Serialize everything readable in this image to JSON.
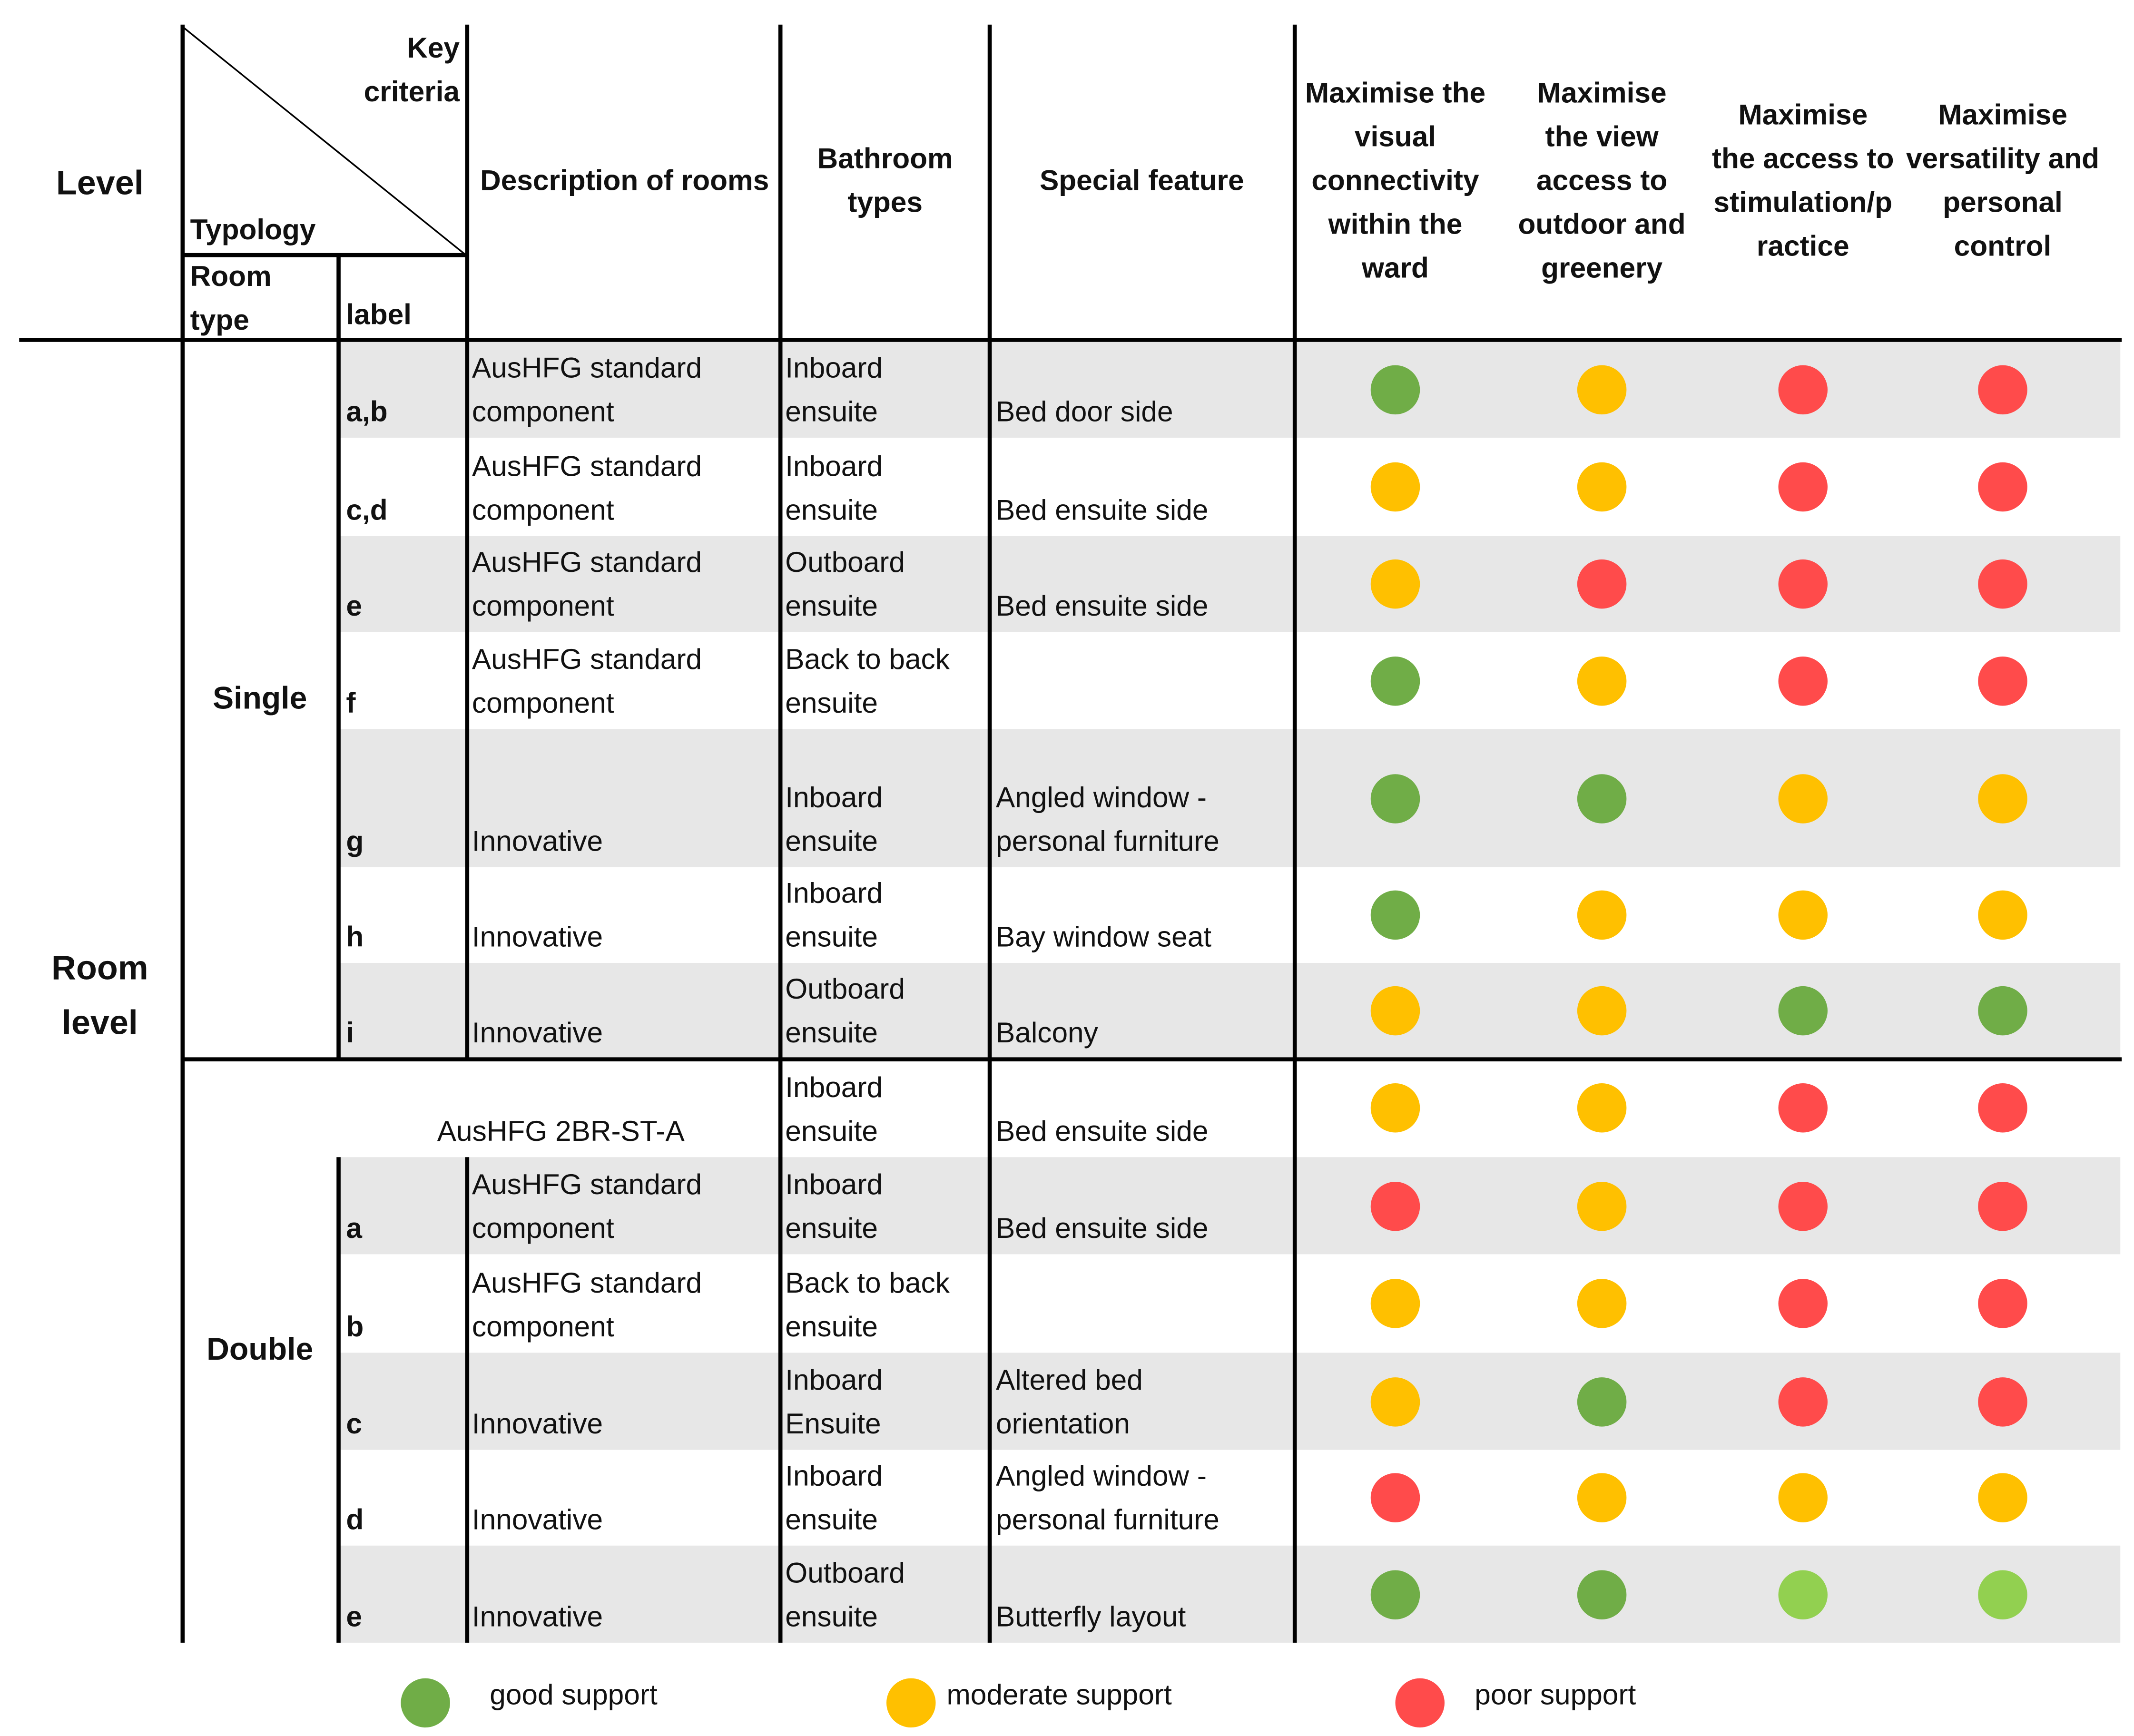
{
  "colors": {
    "good": "#70ad47",
    "good_light": "#92d050",
    "moderate": "#ffc000",
    "poor": "#ff4b4b",
    "band": "#e7e7e7"
  },
  "header": {
    "level": "Level",
    "key_criteria_line1": "Key",
    "key_criteria_line2": "criteria",
    "typology": "Typology",
    "room_type_line1": "Room",
    "room_type_line2": "type",
    "label": "label",
    "description": "Description of rooms",
    "bathroom_line1": "Bathroom",
    "bathroom_line2": "types",
    "special": "Special feature",
    "criteria": [
      {
        "lines": [
          "Maximise the",
          "visual",
          "connectivity",
          "within the",
          "ward"
        ]
      },
      {
        "lines": [
          "Maximise",
          "the view",
          "access to",
          "outdoor and",
          "greenery"
        ]
      },
      {
        "lines": [
          "Maximise",
          "the access to",
          "stimulation/p",
          "ractice"
        ]
      },
      {
        "lines": [
          "Maximise",
          "versatility and",
          "personal",
          "control"
        ]
      }
    ]
  },
  "level_label": {
    "line1": "Room",
    "line2": "level"
  },
  "groups": {
    "single": "Single",
    "double": "Double"
  },
  "rows": [
    {
      "label": "a,b",
      "desc": [
        "AusHFG standard",
        "component"
      ],
      "bath": [
        "Inboard",
        "ensuite"
      ],
      "special": [
        "Bed door side"
      ],
      "ratings": [
        "good",
        "moderate",
        "poor",
        "poor"
      ]
    },
    {
      "label": "c,d",
      "desc": [
        "AusHFG standard",
        "component"
      ],
      "bath": [
        "Inboard",
        "ensuite"
      ],
      "special": [
        "Bed ensuite side"
      ],
      "ratings": [
        "moderate",
        "moderate",
        "poor",
        "poor"
      ]
    },
    {
      "label": "e",
      "desc": [
        "AusHFG standard",
        "component"
      ],
      "bath": [
        "Outboard",
        "ensuite"
      ],
      "special": [
        "Bed ensuite side"
      ],
      "ratings": [
        "moderate",
        "poor",
        "poor",
        "poor"
      ]
    },
    {
      "label": "f",
      "desc": [
        "AusHFG standard",
        "component"
      ],
      "bath": [
        "Back to back",
        "ensuite"
      ],
      "special": [],
      "ratings": [
        "good",
        "moderate",
        "poor",
        "poor"
      ]
    },
    {
      "label": "g",
      "desc": [
        "Innovative"
      ],
      "bath": [
        "Inboard",
        "ensuite"
      ],
      "special": [
        "Angled window -",
        "personal furniture"
      ],
      "ratings": [
        "good",
        "good",
        "moderate",
        "moderate"
      ]
    },
    {
      "label": "h",
      "desc": [
        "Innovative"
      ],
      "bath": [
        "Inboard",
        "ensuite"
      ],
      "special": [
        "Bay window seat"
      ],
      "ratings": [
        "good",
        "moderate",
        "moderate",
        "moderate"
      ]
    },
    {
      "label": "i",
      "desc": [
        "Innovative"
      ],
      "bath": [
        "Outboard",
        "ensuite"
      ],
      "special": [
        "Balcony"
      ],
      "ratings": [
        "moderate",
        "moderate",
        "good",
        "good"
      ]
    },
    {
      "label": "",
      "desc": [
        "AusHFG 2BR-ST-A"
      ],
      "bath": [
        "Inboard",
        "ensuite"
      ],
      "special": [
        "Bed ensuite side"
      ],
      "ratings": [
        "moderate",
        "moderate",
        "poor",
        "poor"
      ]
    },
    {
      "label": "a",
      "desc": [
        "AusHFG standard",
        "component"
      ],
      "bath": [
        "Inboard",
        "ensuite"
      ],
      "special": [
        "Bed ensuite side"
      ],
      "ratings": [
        "poor",
        "moderate",
        "poor",
        "poor"
      ]
    },
    {
      "label": "b",
      "desc": [
        "AusHFG standard",
        "component"
      ],
      "bath": [
        "Back to back",
        "ensuite"
      ],
      "special": [],
      "ratings": [
        "moderate",
        "moderate",
        "poor",
        "poor"
      ]
    },
    {
      "label": "c",
      "desc": [
        "Innovative"
      ],
      "bath": [
        "Inboard",
        "Ensuite"
      ],
      "special": [
        "Altered bed",
        "orientation"
      ],
      "ratings": [
        "moderate",
        "good",
        "poor",
        "poor"
      ]
    },
    {
      "label": "d",
      "desc": [
        "Innovative"
      ],
      "bath": [
        "Inboard",
        "ensuite"
      ],
      "special": [
        "Angled window -",
        "personal furniture"
      ],
      "ratings": [
        "poor",
        "moderate",
        "moderate",
        "moderate"
      ]
    },
    {
      "label": "e",
      "desc": [
        "Innovative"
      ],
      "bath": [
        "Outboard",
        "ensuite"
      ],
      "special": [
        "Butterfly layout"
      ],
      "ratings": [
        "good",
        "good",
        "good_light",
        "good_light"
      ]
    }
  ],
  "legend": [
    {
      "rating": "good",
      "label": "good support"
    },
    {
      "rating": "moderate",
      "label": "moderate support"
    },
    {
      "rating": "poor",
      "label": "poor support"
    }
  ]
}
